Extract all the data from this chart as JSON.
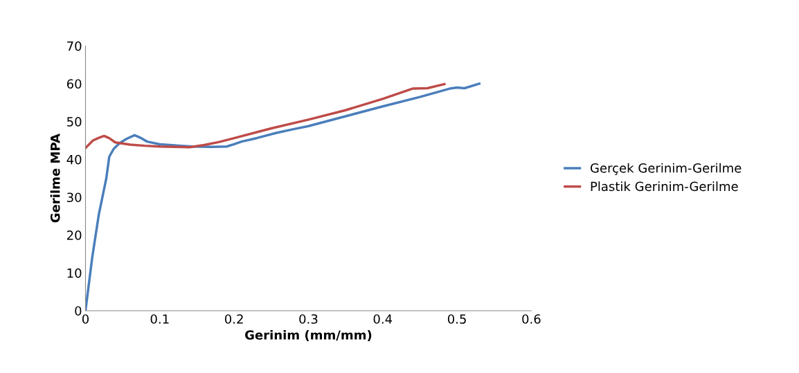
{
  "chart_data": {
    "type": "line",
    "xlabel": "Gerinim (mm/mm)",
    "ylabel": "Gerilme MPA",
    "xlim": [
      0,
      0.6
    ],
    "xticks": [
      0,
      0.1,
      0.2,
      0.3,
      0.4,
      0.5,
      0.6
    ],
    "ylim": [
      0,
      70
    ],
    "yticks": [
      0,
      10,
      20,
      30,
      40,
      50,
      60,
      70
    ],
    "grid": false,
    "legend": "right",
    "marker": "none",
    "line_style": "solid",
    "series": [
      {
        "name": "Gerçek Gerinim-Gerilme",
        "color": "#4a7ebb",
        "x": [
          0,
          0.009,
          0.018,
          0.028,
          0.032,
          0.038,
          0.046,
          0.055,
          0.066,
          0.073,
          0.083,
          0.1,
          0.12,
          0.143,
          0.17,
          0.19,
          0.2,
          0.21,
          0.23,
          0.257,
          0.28,
          0.3,
          0.35,
          0.4,
          0.45,
          0.49,
          0.5,
          0.51,
          0.53
        ],
        "values": [
          0,
          14,
          25.5,
          35,
          40.7,
          42.8,
          44.3,
          45.4,
          46.4,
          45.8,
          44.7,
          44,
          43.7,
          43.4,
          43.3,
          43.4,
          44,
          44.7,
          45.6,
          47,
          48,
          48.8,
          51.4,
          54,
          56.5,
          58.7,
          59,
          58.8,
          60
        ]
      },
      {
        "name": "Plastik Gerinim-Gerilme",
        "color": "#be4b48",
        "x": [
          0,
          0.01,
          0.018,
          0.025,
          0.032,
          0.04,
          0.06,
          0.08,
          0.1,
          0.12,
          0.14,
          0.16,
          0.18,
          0.2,
          0.25,
          0.3,
          0.35,
          0.4,
          0.44,
          0.46,
          0.483
        ],
        "values": [
          43,
          45,
          45.7,
          46.2,
          45.6,
          44.5,
          43.9,
          43.6,
          43.4,
          43.3,
          43.2,
          43.8,
          44.6,
          45.6,
          48.2,
          50.5,
          53,
          56,
          58.7,
          58.8,
          59.9
        ]
      }
    ]
  }
}
